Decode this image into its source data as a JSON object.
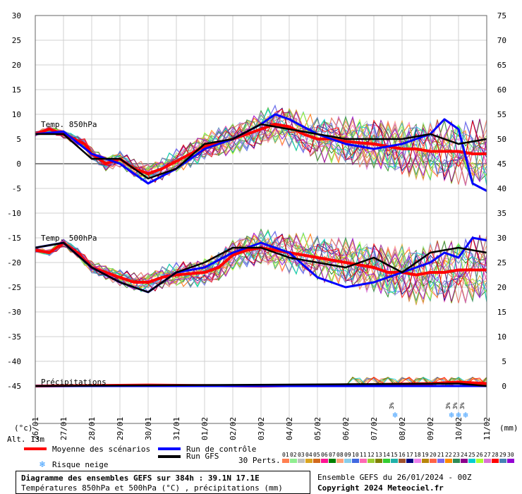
{
  "chart_data": {
    "type": "line",
    "title": "Diagramme des ensembles GEFS sur 384h : 39.1N 17.1E",
    "subtitle": "Températures 850hPa et 500hPa (°C) , précipitations (mm)",
    "left_axis_unit": "(°c)",
    "right_axis_unit": "(mm)",
    "left_ticks": [
      "30",
      "25",
      "20",
      "15",
      "10",
      "5",
      "0",
      "-5",
      "-10",
      "-15",
      "-20",
      "-25",
      "-30",
      "-35",
      "-40",
      "-45"
    ],
    "right_ticks": [
      "75",
      "70",
      "65",
      "60",
      "55",
      "50",
      "45",
      "40",
      "35",
      "30",
      "25",
      "20",
      "15",
      "10",
      "5",
      "0"
    ],
    "x_labels": [
      "26/01",
      "27/01",
      "28/01",
      "29/01",
      "30/01",
      "31/01",
      "01/02",
      "02/02",
      "03/02",
      "04/02",
      "05/02",
      "06/02",
      "07/02",
      "08/02",
      "09/02",
      "10/02",
      "11/02"
    ],
    "panel_labels": {
      "t850": "Temp. 850hPa",
      "t500": "Temp. 500hPa",
      "precip": "Précipitations"
    },
    "altitude": "Alt. 13m",
    "snow_risk_marks": [
      {
        "day": 12.75,
        "label": "3%"
      },
      {
        "day": 14.75,
        "label": "3%"
      },
      {
        "day": 15.0,
        "label": "3%"
      },
      {
        "day": 15.25,
        "label": "3%"
      }
    ],
    "series": [
      {
        "name": "Moyenne des scénarios",
        "color": "#ff0000",
        "t850": [
          [
            0,
            6
          ],
          [
            0.5,
            7
          ],
          [
            1,
            6
          ],
          [
            1.75,
            4
          ],
          [
            2,
            2
          ],
          [
            2.5,
            0
          ],
          [
            3,
            1
          ],
          [
            3.5,
            -1
          ],
          [
            4,
            -2
          ],
          [
            4.5,
            -1
          ],
          [
            5,
            0.5
          ],
          [
            5.5,
            2
          ],
          [
            6,
            3.5
          ],
          [
            7,
            5
          ],
          [
            7.5,
            6
          ],
          [
            8,
            7
          ],
          [
            8.5,
            8
          ],
          [
            9,
            7.5
          ],
          [
            9.5,
            6
          ],
          [
            10,
            5
          ],
          [
            10.5,
            5
          ],
          [
            11,
            4.5
          ],
          [
            12,
            4
          ],
          [
            12.5,
            3.5
          ],
          [
            13,
            3
          ],
          [
            13.5,
            3
          ],
          [
            14,
            2.5
          ],
          [
            14.5,
            2.5
          ],
          [
            15,
            2.5
          ],
          [
            15.5,
            2
          ],
          [
            16,
            2
          ]
        ],
        "t500": [
          [
            0,
            -17.5
          ],
          [
            0.5,
            -18
          ],
          [
            1,
            -16
          ],
          [
            1.5,
            -18
          ],
          [
            2,
            -21
          ],
          [
            2.5,
            -22
          ],
          [
            3,
            -23
          ],
          [
            3.5,
            -24
          ],
          [
            4,
            -24
          ],
          [
            4.5,
            -23
          ],
          [
            5,
            -22.5
          ],
          [
            6,
            -22
          ],
          [
            6.5,
            -21
          ],
          [
            7,
            -18.5
          ],
          [
            7.5,
            -17.5
          ],
          [
            8,
            -17
          ],
          [
            8.5,
            -17.5
          ],
          [
            9,
            -18
          ],
          [
            9.5,
            -18.5
          ],
          [
            10,
            -19
          ],
          [
            10.5,
            -19.5
          ],
          [
            11,
            -20
          ],
          [
            11.5,
            -20.5
          ],
          [
            12,
            -21
          ],
          [
            12.5,
            -22
          ],
          [
            13,
            -22
          ],
          [
            13.5,
            -22.5
          ],
          [
            14,
            -22
          ],
          [
            14.5,
            -22
          ],
          [
            15,
            -21.5
          ],
          [
            15.5,
            -21.5
          ],
          [
            16,
            -21.5
          ]
        ],
        "precip": [
          [
            0,
            0
          ],
          [
            4,
            0.2
          ],
          [
            8,
            0
          ],
          [
            12,
            0.3
          ],
          [
            14,
            0.5
          ],
          [
            15,
            0.8
          ],
          [
            16,
            0.5
          ]
        ]
      },
      {
        "name": "Run de contrôle",
        "color": "#0000ff",
        "t850": [
          [
            0,
            6
          ],
          [
            1,
            6.5
          ],
          [
            2,
            2
          ],
          [
            3,
            0
          ],
          [
            4,
            -4
          ],
          [
            5,
            -1
          ],
          [
            6,
            3
          ],
          [
            7,
            5
          ],
          [
            8,
            8
          ],
          [
            8.5,
            10
          ],
          [
            9,
            9
          ],
          [
            10,
            6
          ],
          [
            11,
            4
          ],
          [
            12,
            3
          ],
          [
            13,
            4
          ],
          [
            13.5,
            5
          ],
          [
            14,
            6
          ],
          [
            14.5,
            9
          ],
          [
            15,
            7
          ],
          [
            15.5,
            -4
          ],
          [
            16,
            -5.5
          ]
        ],
        "t500": [
          [
            0,
            -17
          ],
          [
            1,
            -16
          ],
          [
            2,
            -21
          ],
          [
            3,
            -24
          ],
          [
            4,
            -26
          ],
          [
            5,
            -22
          ],
          [
            6,
            -21
          ],
          [
            7,
            -18
          ],
          [
            8,
            -16
          ],
          [
            9,
            -18
          ],
          [
            10,
            -23
          ],
          [
            11,
            -25
          ],
          [
            12,
            -24
          ],
          [
            13,
            -22
          ],
          [
            14,
            -20
          ],
          [
            14.5,
            -18
          ],
          [
            15,
            -19
          ],
          [
            15.5,
            -15
          ],
          [
            16,
            -15.5
          ]
        ],
        "precip": [
          [
            0,
            0
          ],
          [
            16,
            0
          ]
        ]
      },
      {
        "name": "Run GFS",
        "color": "#000000",
        "t850": [
          [
            0,
            6
          ],
          [
            1,
            6
          ],
          [
            2,
            1
          ],
          [
            3,
            1
          ],
          [
            4,
            -3
          ],
          [
            5,
            -1
          ],
          [
            6,
            4
          ],
          [
            7,
            5
          ],
          [
            8,
            8
          ],
          [
            9,
            7
          ],
          [
            10,
            6
          ],
          [
            11,
            5
          ],
          [
            12,
            5
          ],
          [
            13,
            5
          ],
          [
            14,
            6
          ],
          [
            15,
            4
          ],
          [
            16,
            5
          ]
        ],
        "t500": [
          [
            0,
            -17
          ],
          [
            1,
            -16
          ],
          [
            2,
            -21
          ],
          [
            3,
            -24
          ],
          [
            4,
            -26
          ],
          [
            5,
            -22
          ],
          [
            6,
            -20
          ],
          [
            7,
            -17
          ],
          [
            8,
            -17
          ],
          [
            9,
            -19
          ],
          [
            10,
            -20
          ],
          [
            11,
            -21
          ],
          [
            12,
            -19
          ],
          [
            13,
            -22
          ],
          [
            14,
            -18
          ],
          [
            15,
            -17
          ],
          [
            16,
            -18
          ]
        ],
        "precip": [
          [
            0,
            0
          ],
          [
            15,
            0.5
          ],
          [
            16,
            0
          ]
        ]
      }
    ],
    "perturbation_count": "30 Perts.",
    "perturbation_labels": [
      "01",
      "02",
      "03",
      "04",
      "05",
      "06",
      "07",
      "08",
      "09",
      "10",
      "11",
      "12",
      "13",
      "14",
      "15",
      "16",
      "17",
      "18",
      "19",
      "20",
      "21",
      "22",
      "23",
      "24",
      "25",
      "26",
      "27",
      "28",
      "29",
      "30"
    ],
    "perturbation_colors": [
      "#ff7f50",
      "#90ee90",
      "#c0c0c0",
      "#daa520",
      "#d2691e",
      "#ff1493",
      "#008000",
      "#ffa07a",
      "#87ceeb",
      "#4169e1",
      "#ff69b4",
      "#9acd32",
      "#808000",
      "#32cd32",
      "#20b2aa",
      "#a0522d",
      "#000080",
      "#ee82ee",
      "#b8860b",
      "#ff6347",
      "#7b68ee",
      "#ff8c00",
      "#2e8b57",
      "#8b008b",
      "#00ced1",
      "#adff2f",
      "#da70d6",
      "#ff0000",
      "#4682b4",
      "#9400d3"
    ]
  },
  "legend": {
    "mean": "Moyenne des scénarios",
    "control": "Run de contrôle",
    "gfs": "Run GFS",
    "snow": "Risque neige"
  },
  "footer": {
    "ensemble": "Ensemble GEFS du 26/01/2024 - 00Z",
    "copyright": "Copyright 2024 Meteociel.fr"
  }
}
